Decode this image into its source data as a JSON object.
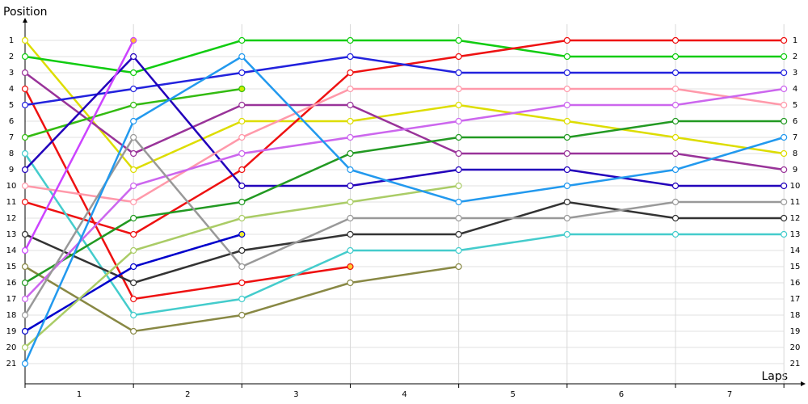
{
  "chart_data": {
    "type": "line",
    "y_label": "Position",
    "x_label": "Laps",
    "x": [
      0,
      1,
      2,
      3,
      4,
      5,
      6,
      7
    ],
    "xlim": [
      0,
      7.2
    ],
    "xticks": [
      {
        "value": 0.5,
        "label": "1"
      },
      {
        "value": 1.5,
        "label": "2"
      },
      {
        "value": 2.5,
        "label": "3"
      },
      {
        "value": 3.5,
        "label": "4"
      },
      {
        "value": 4.5,
        "label": "5"
      },
      {
        "value": 5.5,
        "label": "6"
      },
      {
        "value": 6.5,
        "label": "7"
      }
    ],
    "ylim": [
      22.25,
      0
    ],
    "yticks": [
      1,
      2,
      3,
      4,
      5,
      6,
      7,
      8,
      9,
      10,
      11,
      12,
      13,
      14,
      15,
      16,
      17,
      18,
      19,
      20,
      21
    ],
    "grid": true,
    "series": [
      {
        "color": "#dddd00",
        "values": [
          1,
          9,
          6,
          6,
          5,
          6,
          7,
          8
        ]
      },
      {
        "color": "#11cc11",
        "values": [
          2,
          3,
          1,
          1,
          1,
          2,
          2,
          2
        ]
      },
      {
        "color": "#993399",
        "values": [
          3,
          8,
          5,
          5,
          8,
          8,
          8,
          9
        ]
      },
      {
        "color": "#ee1111",
        "marker_color": "#ffcc33",
        "values": [
          4,
          17,
          16,
          15,
          null,
          null,
          null,
          null
        ]
      },
      {
        "color": "#ee1111",
        "values": [
          11,
          13,
          9,
          3,
          2,
          1,
          1,
          1
        ]
      },
      {
        "color": "#2222dd",
        "values": [
          5,
          4,
          3,
          2,
          3,
          3,
          3,
          3
        ]
      },
      {
        "color": "#33bb11",
        "marker_color": "#ccee00",
        "values": [
          7,
          5,
          4,
          null,
          null,
          null,
          null,
          null
        ]
      },
      {
        "color": "#44cccc",
        "values": [
          8,
          18,
          17,
          14,
          14,
          13,
          13,
          13
        ]
      },
      {
        "color": "#2200bb",
        "values": [
          9,
          2,
          10,
          10,
          9,
          9,
          10,
          10
        ]
      },
      {
        "color": "#ff99aa",
        "values": [
          10,
          11,
          7,
          4,
          4,
          4,
          4,
          5
        ]
      },
      {
        "color": "#333333",
        "values": [
          13,
          16,
          14,
          13,
          13,
          11,
          12,
          12
        ]
      },
      {
        "color": "#cc44ff",
        "marker_color": "#ffbb33",
        "values": [
          14,
          1,
          null,
          null,
          null,
          null,
          null,
          null
        ]
      },
      {
        "color": "#888844",
        "values": [
          15,
          19,
          18,
          16,
          15,
          null,
          null,
          null
        ]
      },
      {
        "color": "#229922",
        "values": [
          16,
          12,
          11,
          8,
          7,
          7,
          6,
          6
        ]
      },
      {
        "color": "#cc66ee",
        "values": [
          17,
          10,
          8,
          7,
          6,
          5,
          5,
          4
        ]
      },
      {
        "color": "#999999",
        "values": [
          18,
          7,
          15,
          12,
          12,
          12,
          11,
          11
        ]
      },
      {
        "color": "#0000cc",
        "marker_color": "#eeee33",
        "values": [
          19,
          15,
          13,
          null,
          null,
          null,
          null,
          null
        ]
      },
      {
        "color": "#aacc66",
        "values": [
          20,
          14,
          12,
          11,
          10,
          null,
          null,
          null
        ]
      },
      {
        "color": "#2299ee",
        "values": [
          21,
          6,
          2,
          9,
          11,
          10,
          9,
          7
        ]
      }
    ]
  }
}
